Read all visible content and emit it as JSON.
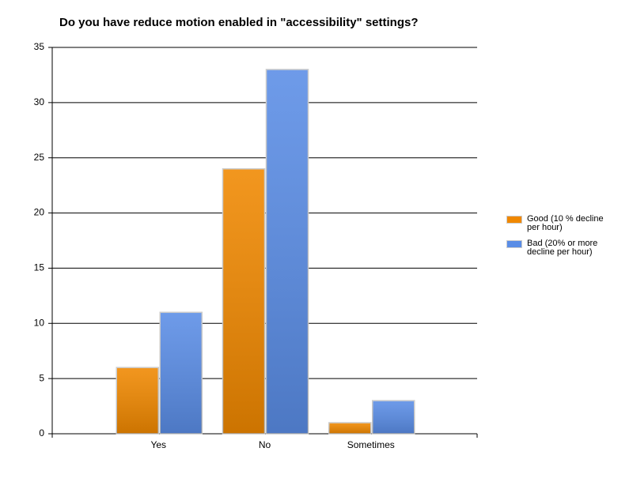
{
  "chart_data": {
    "type": "bar",
    "title": "Do you have reduce motion enabled in \"accessibility\" settings?",
    "categories": [
      "Yes",
      "No",
      "Sometimes"
    ],
    "series": [
      {
        "name": "Good (10 % decline per hour)",
        "color": "#f08800",
        "values": [
          6,
          24,
          1
        ]
      },
      {
        "name": "Bad (20% or more decline per hour)",
        "color": "#5a8de6",
        "values": [
          11,
          33,
          3
        ]
      }
    ],
    "ylim": [
      0,
      35
    ],
    "yticks": [
      0,
      5,
      10,
      15,
      20,
      25,
      30,
      35
    ],
    "grid": true,
    "legend": "right"
  }
}
